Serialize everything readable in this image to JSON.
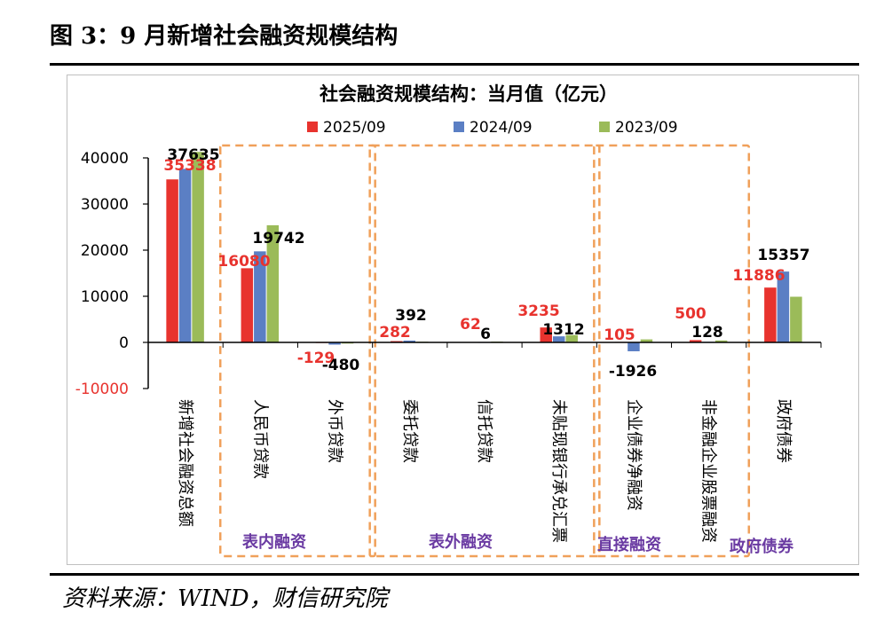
{
  "figure_title": "图 3：9 月新增社会融资规模结构",
  "source_note": "资料来源：WIND，财信研究院",
  "colors": {
    "s2025": "#e8332e",
    "s2024": "#5b7fc4",
    "s2023": "#9bbb59",
    "box": "#f0a05a",
    "group_text": "#6a3aa2"
  },
  "chart_data": {
    "type": "bar",
    "title": "社会融资规模结构：当月值（亿元）",
    "ylim": [
      -10000,
      40000
    ],
    "yticks": [
      40000,
      30000,
      20000,
      10000,
      0,
      -10000
    ],
    "categories": [
      "新增社会融资总额",
      "人民币贷款",
      "外币贷款",
      "委托贷款",
      "信托贷款",
      "未贴现银行承兑汇票",
      "企业债券净融资",
      "非金融企业股票融资",
      "政府债券"
    ],
    "series": [
      {
        "name": "2025/09",
        "values": [
          35338,
          16080,
          -129,
          282,
          62,
          3235,
          105,
          500,
          11886
        ]
      },
      {
        "name": "2024/09",
        "values": [
          37635,
          19742,
          -480,
          392,
          6,
          1312,
          -1926,
          128,
          15357
        ]
      },
      {
        "name": "2023/09",
        "values": [
          41300,
          25400,
          -250,
          150,
          170,
          1600,
          650,
          420,
          9900
        ]
      }
    ],
    "data_labels": {
      "2025/09": [
        "35338",
        "16080",
        "-129",
        "282",
        "62",
        "3235",
        "105",
        "500",
        "11886"
      ],
      "2024/09": [
        "37635",
        "19742",
        "-480",
        "392",
        "6",
        "1312",
        "-1926",
        "128",
        "15357"
      ]
    },
    "groups": [
      {
        "label": "表内融资",
        "from": 1,
        "to": 2
      },
      {
        "label": "表外融资",
        "from": 3,
        "to": 5
      },
      {
        "label": "直接融资",
        "from": 6,
        "to": 7
      },
      {
        "label": "政府债券",
        "from": 8,
        "to": 8
      }
    ]
  }
}
